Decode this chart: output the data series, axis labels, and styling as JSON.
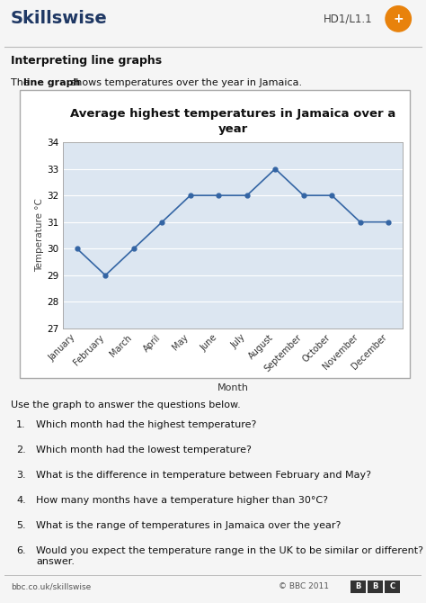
{
  "title": "Average highest temperatures in Jamaica over a\nyear",
  "months": [
    "January",
    "February",
    "March",
    "April",
    "May",
    "June",
    "July",
    "August",
    "September",
    "October",
    "November",
    "December"
  ],
  "temperatures": [
    30,
    29,
    30,
    31,
    32,
    32,
    32,
    33,
    32,
    32,
    31,
    31
  ],
  "ylabel": "Temperature °C",
  "xlabel": "Month",
  "ylim": [
    27,
    34
  ],
  "yticks": [
    27,
    28,
    29,
    30,
    31,
    32,
    33,
    34
  ],
  "line_color": "#3465a4",
  "marker_color": "#3465a4",
  "chart_bg": "#dce6f1",
  "chart_border": "#aaaaaa",
  "page_bg": "#f5f5f5",
  "skillswise_text": "Skillswise",
  "skillswise_color": "#1f3864",
  "hd_text": "HD1/L1.1",
  "section_title": "Interpreting line graphs",
  "intro_text_pre": "The ",
  "intro_text_bold": "line graph",
  "intro_text_post": " shows temperatures over the year in Jamaica.",
  "questions_intro": "Use the graph to answer the questions below.",
  "questions": [
    "Which month had the highest temperature?",
    "Which month had the lowest temperature?",
    "What is the difference in temperature between February and May?",
    "How many months have a temperature higher than 30°C?",
    "What is the range of temperatures in Jamaica over the year?",
    "Would you expect the temperature range in the UK to be similar or different? Explain your\nanswer."
  ],
  "footer_left": "bbc.co.uk/skillswise",
  "footer_right": "© BBC 2011"
}
